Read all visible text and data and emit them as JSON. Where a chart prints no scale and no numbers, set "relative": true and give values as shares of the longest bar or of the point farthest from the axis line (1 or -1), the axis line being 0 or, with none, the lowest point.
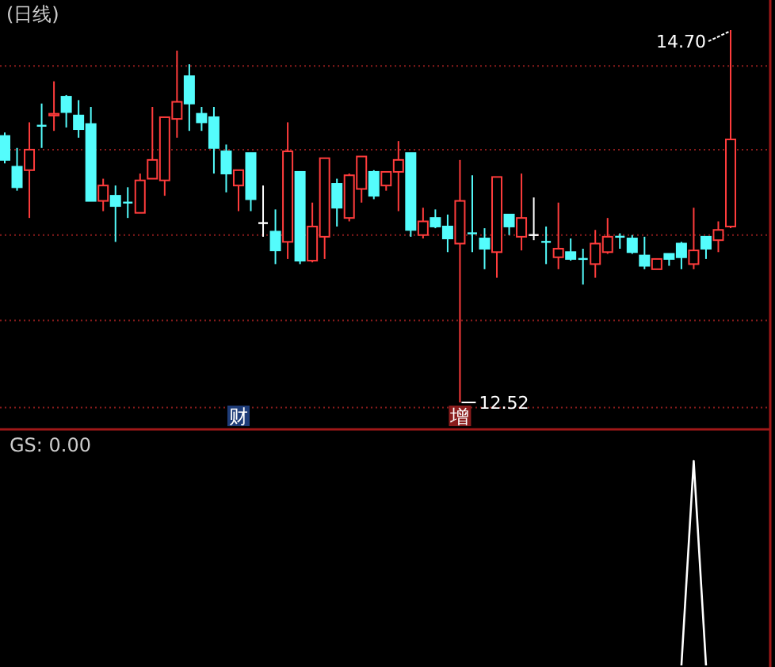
{
  "chart_data": [
    {
      "type": "candlestick",
      "title": "(日线)",
      "categories": [
        null,
        null,
        null,
        null,
        null,
        null,
        null,
        null,
        null,
        null,
        null,
        null,
        null,
        null,
        null,
        null,
        null,
        null,
        null,
        null,
        null,
        null,
        null,
        null,
        null,
        null,
        null,
        null,
        null,
        null,
        null,
        null,
        null,
        null,
        null,
        null,
        null,
        null,
        null,
        null,
        null,
        null,
        null,
        null,
        null,
        null,
        null,
        null,
        null,
        null,
        null,
        null,
        null,
        null,
        null,
        null,
        null,
        null,
        null,
        null
      ],
      "ohlc": [
        [
          14.08,
          14.1,
          13.92,
          13.94
        ],
        [
          13.9,
          14.01,
          13.76,
          13.78
        ],
        [
          13.88,
          14.16,
          13.6,
          14.0
        ],
        [
          14.14,
          14.27,
          14.01,
          14.14
        ],
        [
          14.2,
          14.4,
          14.11,
          14.21
        ],
        [
          14.31,
          14.32,
          14.13,
          14.22
        ],
        [
          14.2,
          14.29,
          14.07,
          14.12
        ],
        [
          14.15,
          14.25,
          13.7,
          13.7
        ],
        [
          13.7,
          13.83,
          13.64,
          13.79
        ],
        [
          13.73,
          13.79,
          13.46,
          13.67
        ],
        [
          13.69,
          13.78,
          13.6,
          13.69
        ],
        [
          13.63,
          13.86,
          13.63,
          13.82
        ],
        [
          13.83,
          14.25,
          13.83,
          13.94
        ],
        [
          13.82,
          14.19,
          13.73,
          14.19
        ],
        [
          14.18,
          14.58,
          14.07,
          14.28
        ],
        [
          14.43,
          14.5,
          14.11,
          14.27
        ],
        [
          14.21,
          14.25,
          14.11,
          14.16
        ],
        [
          14.19,
          14.25,
          13.86,
          14.01
        ],
        [
          13.99,
          14.03,
          13.75,
          13.86
        ],
        [
          13.79,
          13.88,
          13.64,
          13.88
        ],
        [
          13.98,
          13.98,
          13.64,
          13.71
        ],
        [
          13.57,
          13.79,
          13.49,
          13.57
        ],
        [
          13.52,
          13.65,
          13.33,
          13.41
        ],
        [
          13.46,
          14.16,
          13.36,
          13.99
        ],
        [
          13.87,
          13.87,
          13.33,
          13.35
        ],
        [
          13.35,
          13.69,
          13.34,
          13.55
        ],
        [
          13.49,
          13.95,
          13.36,
          13.95
        ],
        [
          13.8,
          13.83,
          13.55,
          13.66
        ],
        [
          13.6,
          13.86,
          13.58,
          13.85
        ],
        [
          13.77,
          13.96,
          13.69,
          13.96
        ],
        [
          13.87,
          13.88,
          13.71,
          13.73
        ],
        [
          13.79,
          13.87,
          13.76,
          13.87
        ],
        [
          13.87,
          14.05,
          13.64,
          13.94
        ],
        [
          13.98,
          13.98,
          13.49,
          13.53
        ],
        [
          13.5,
          13.66,
          13.48,
          13.58
        ],
        [
          13.6,
          13.65,
          13.54,
          13.55
        ],
        [
          13.55,
          13.62,
          13.4,
          13.48
        ],
        [
          13.45,
          13.94,
          12.52,
          13.7
        ],
        [
          13.51,
          13.85,
          13.4,
          13.51
        ],
        [
          13.48,
          13.54,
          13.3,
          13.42
        ],
        [
          13.4,
          13.84,
          13.25,
          13.84
        ],
        [
          13.62,
          13.62,
          13.5,
          13.55
        ],
        [
          13.49,
          13.86,
          13.41,
          13.6
        ],
        [
          13.5,
          13.72,
          13.47,
          13.5
        ],
        [
          13.46,
          13.55,
          13.33,
          13.46
        ],
        [
          13.37,
          13.69,
          13.3,
          13.42
        ],
        [
          13.4,
          13.48,
          13.35,
          13.36
        ],
        [
          13.36,
          13.42,
          13.21,
          13.36
        ],
        [
          13.33,
          13.53,
          13.25,
          13.45
        ],
        [
          13.4,
          13.6,
          13.39,
          13.49
        ],
        [
          13.49,
          13.51,
          13.42,
          13.49
        ],
        [
          13.48,
          13.5,
          13.39,
          13.4
        ],
        [
          13.38,
          13.49,
          13.3,
          13.32
        ],
        [
          13.3,
          13.36,
          13.3,
          13.36
        ],
        [
          13.39,
          13.39,
          13.32,
          13.36
        ],
        [
          13.45,
          13.46,
          13.3,
          13.37
        ],
        [
          13.33,
          13.66,
          13.3,
          13.41
        ],
        [
          13.49,
          13.49,
          13.36,
          13.42
        ],
        [
          13.47,
          13.58,
          13.4,
          13.53
        ],
        [
          13.55,
          14.7,
          13.54,
          14.06
        ]
      ],
      "colors": [
        "#54fcfc",
        "#54fcfc",
        "#ff3c3c",
        "#54fcfc",
        "#ff3c3c",
        "#54fcfc",
        "#54fcfc",
        "#54fcfc",
        "#ff3c3c",
        "#54fcfc",
        "#54fcfc",
        "#ff3c3c",
        "#ff3c3c",
        "#ff3c3c",
        "#ff3c3c",
        "#54fcfc",
        "#54fcfc",
        "#54fcfc",
        "#54fcfc",
        "#ff3c3c",
        "#54fcfc",
        "#ffffff",
        "#54fcfc",
        "#ff3c3c",
        "#54fcfc",
        "#ff3c3c",
        "#ff3c3c",
        "#54fcfc",
        "#ff3c3c",
        "#ff3c3c",
        "#54fcfc",
        "#ff3c3c",
        "#ff3c3c",
        "#54fcfc",
        "#ff3c3c",
        "#54fcfc",
        "#54fcfc",
        "#ff3c3c",
        "#54fcfc",
        "#54fcfc",
        "#ff3c3c",
        "#54fcfc",
        "#ff3c3c",
        "#ffffff",
        "#54fcfc",
        "#ff3c3c",
        "#54fcfc",
        "#54fcfc",
        "#ff3c3c",
        "#ff3c3c",
        "#54fcfc",
        "#54fcfc",
        "#54fcfc",
        "#ff3c3c",
        "#54fcfc",
        "#54fcfc",
        "#ff3c3c",
        "#54fcfc",
        "#ff3c3c",
        "#ff3c3c"
      ],
      "yticks": [
        {
          "value": 12.49,
          "label": null
        },
        {
          "value": 13.0,
          "label": null
        },
        {
          "value": 13.5,
          "label": null
        },
        {
          "value": 14.0,
          "label": null
        },
        {
          "value": 14.49,
          "label": null
        }
      ],
      "grid": "y",
      "annotations": [
        "14.70",
        "12.52",
        "财",
        "增"
      ]
    },
    {
      "type": "line",
      "title": "GS: 0.00",
      "relative": true,
      "color": "#ffffff",
      "categories": [
        null,
        null,
        null,
        null,
        null,
        null,
        null,
        null,
        null,
        null,
        null,
        null,
        null,
        null,
        null,
        null,
        null,
        null,
        null,
        null,
        null,
        null,
        null,
        null,
        null,
        null,
        null,
        null,
        null,
        null,
        null,
        null,
        null,
        null,
        null,
        null,
        null,
        null,
        null,
        null,
        null,
        null,
        null,
        null,
        null,
        null,
        null,
        null,
        null,
        null,
        null,
        null,
        null,
        null,
        null,
        null,
        null,
        null,
        null,
        null
      ],
      "values": [
        null,
        null,
        null,
        null,
        null,
        null,
        null,
        null,
        null,
        null,
        null,
        null,
        null,
        null,
        null,
        null,
        null,
        null,
        null,
        null,
        null,
        null,
        null,
        null,
        null,
        null,
        null,
        null,
        null,
        null,
        null,
        null,
        null,
        null,
        null,
        null,
        null,
        null,
        null,
        null,
        null,
        null,
        null,
        null,
        null,
        null,
        null,
        null,
        null,
        null,
        null,
        null,
        null,
        null,
        null,
        0,
        1,
        0,
        null,
        null
      ]
    }
  ]
}
